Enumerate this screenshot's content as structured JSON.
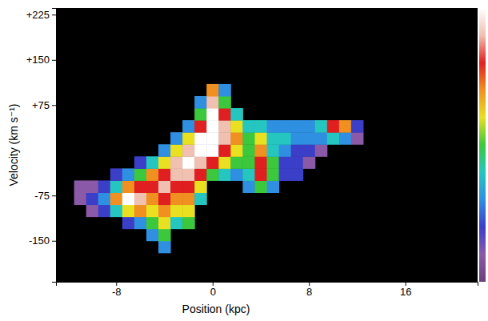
{
  "chart_data": {
    "type": "heatmap",
    "x_label": "Position (kpc)",
    "y_label": "Velocity (km s⁻¹)",
    "xlim": [
      -13,
      22
    ],
    "xticks": [
      -8,
      0,
      8,
      16
    ],
    "ylim": [
      -218,
      236
    ],
    "yticks": [
      {
        "value": 225,
        "label": "+225"
      },
      {
        "value": 150,
        "label": "+150"
      },
      {
        "value": 75,
        "label": "+75"
      },
      -75,
      -150
    ],
    "zlim": [
      0,
      10
    ],
    "x": [
      -11,
      -10,
      -9,
      -8,
      -7,
      -6,
      -5,
      -4,
      -3,
      -2,
      -1,
      0,
      1,
      2,
      3,
      4,
      5,
      6,
      7,
      8,
      9,
      10,
      11,
      12
    ],
    "y": [
      -160,
      -140,
      -120,
      -100,
      -80,
      -60,
      -40,
      -20,
      0,
      20,
      40,
      60,
      80,
      100
    ],
    "z": [
      [
        null,
        null,
        null,
        null,
        null,
        null,
        null,
        3,
        null,
        null,
        null,
        null,
        null,
        null,
        null,
        null,
        null,
        null,
        null,
        null,
        null,
        null,
        null,
        null
      ],
      [
        null,
        null,
        null,
        null,
        null,
        null,
        3,
        5,
        null,
        null,
        null,
        null,
        null,
        null,
        null,
        null,
        null,
        null,
        null,
        null,
        null,
        null,
        null,
        null
      ],
      [
        null,
        null,
        null,
        null,
        2,
        3,
        5,
        6,
        4,
        5,
        null,
        null,
        null,
        null,
        null,
        null,
        null,
        null,
        null,
        null,
        null,
        null,
        null,
        null
      ],
      [
        null,
        1,
        2,
        4,
        6,
        7,
        6,
        7,
        6,
        6,
        null,
        null,
        null,
        null,
        null,
        null,
        null,
        null,
        null,
        null,
        null,
        null,
        null,
        null
      ],
      [
        1,
        2,
        3,
        7,
        10,
        9,
        7,
        8,
        7,
        7,
        4,
        null,
        null,
        null,
        null,
        null,
        null,
        null,
        null,
        null,
        null,
        null,
        null,
        null
      ],
      [
        1,
        1,
        2,
        4,
        7,
        8,
        8,
        9,
        8,
        8,
        6,
        null,
        null,
        null,
        3,
        5,
        3,
        null,
        null,
        null,
        null,
        null,
        null,
        null
      ],
      [
        null,
        null,
        null,
        2,
        3,
        5,
        7,
        8,
        9,
        9,
        8,
        5,
        4,
        3,
        4,
        8,
        5,
        2,
        2,
        null,
        null,
        null,
        null,
        null
      ],
      [
        null,
        null,
        null,
        null,
        null,
        2,
        4,
        6,
        9,
        10,
        9,
        8,
        6,
        5,
        5,
        8,
        5,
        2,
        2,
        1,
        null,
        null,
        null,
        null
      ],
      [
        null,
        null,
        null,
        null,
        null,
        null,
        null,
        3,
        6,
        9,
        10,
        10,
        8,
        6,
        5,
        7,
        4,
        3,
        2,
        2,
        1,
        null,
        null,
        null
      ],
      [
        null,
        null,
        null,
        null,
        null,
        null,
        null,
        null,
        3,
        6,
        10,
        10,
        9,
        7,
        5,
        6,
        4,
        4,
        3,
        3,
        3,
        4,
        3,
        1
      ],
      [
        null,
        null,
        null,
        null,
        null,
        null,
        null,
        null,
        null,
        3,
        8,
        10,
        9,
        6,
        4,
        4,
        3,
        3,
        3,
        3,
        4,
        8,
        7,
        2
      ],
      [
        null,
        null,
        null,
        null,
        null,
        null,
        null,
        null,
        null,
        null,
        5,
        10,
        8,
        4,
        null,
        null,
        null,
        null,
        null,
        null,
        null,
        null,
        null,
        null
      ],
      [
        null,
        null,
        null,
        null,
        null,
        null,
        null,
        null,
        null,
        null,
        3,
        9,
        5,
        null,
        null,
        null,
        null,
        null,
        null,
        null,
        null,
        null,
        null,
        null
      ],
      [
        null,
        null,
        null,
        null,
        null,
        null,
        null,
        null,
        null,
        null,
        null,
        7,
        3,
        null,
        null,
        null,
        null,
        null,
        null,
        null,
        null,
        null,
        null,
        null
      ]
    ]
  }
}
